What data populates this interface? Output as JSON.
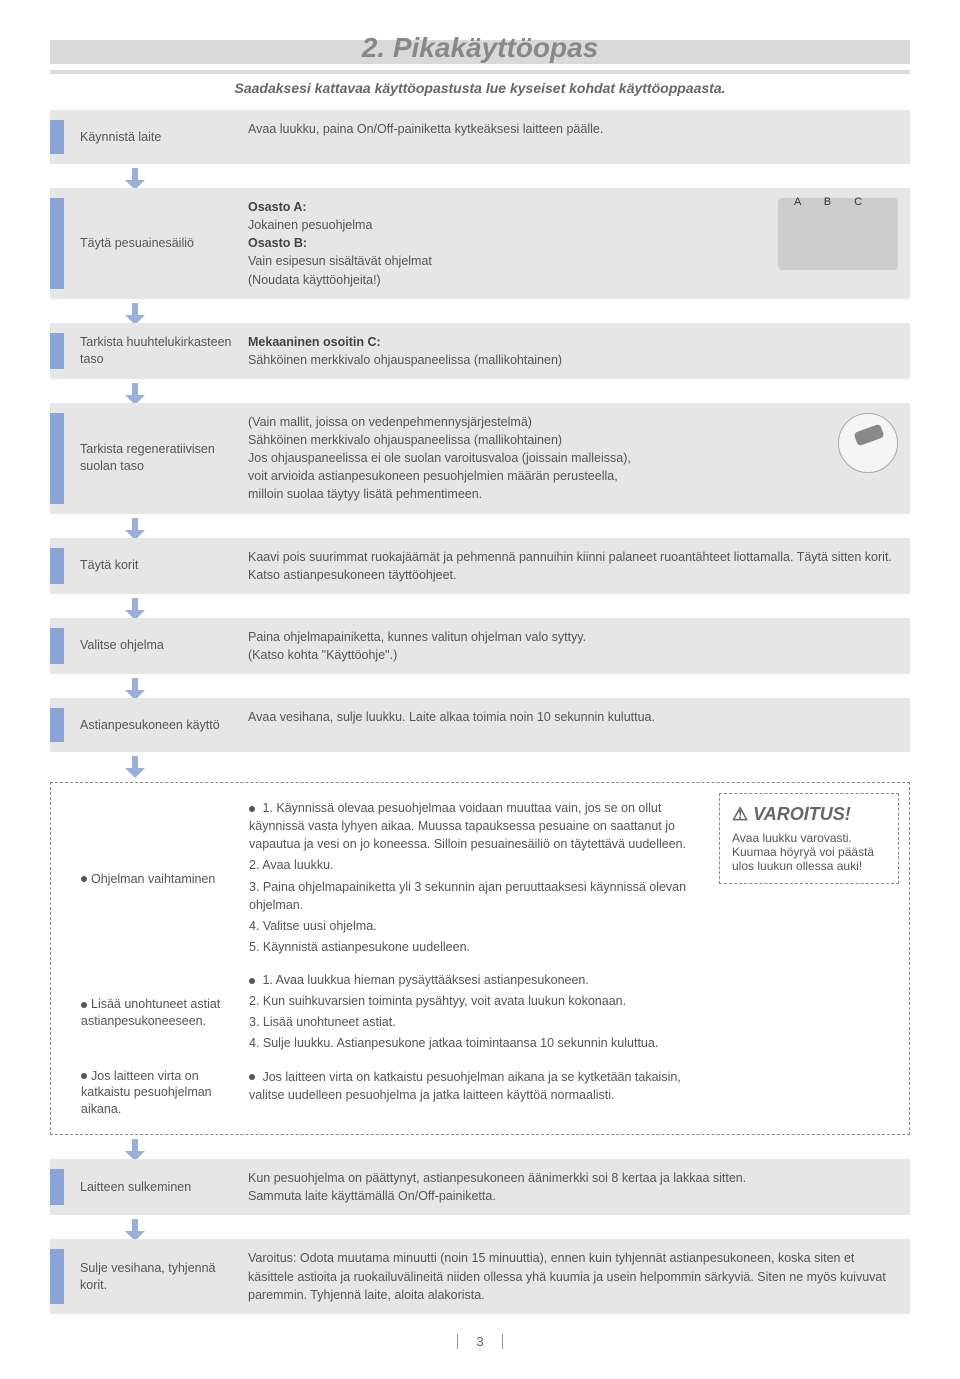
{
  "title": "2. Pikakäyttöopas",
  "subtitle": "Saadaksesi kattavaa käyttöopastusta lue kyseiset kohdat käyttöoppaasta.",
  "colors": {
    "band": "#d9d9d9",
    "tab": "#8aa4d6",
    "step_bg": "#e6e6e6",
    "text": "#555",
    "title": "#888"
  },
  "page_number": "3",
  "steps": [
    {
      "label": "Käynnistä laite",
      "body_html": "Avaa luukku, paina On/Off-painiketta kytkeäksesi laitteen päälle."
    },
    {
      "label": "Täytä pesuainesäiliö",
      "body_html": "<b>Osasto A:</b><br>Jokainen pesuohjelma<br><b>Osasto B:</b><br>Vain esipesun sisältävät ohjelmat<br>(Noudata käyttöohjeita!)",
      "image": "dispenser",
      "abc": "A  B  C"
    },
    {
      "label": "Tarkista huuhtelukirkasteen taso",
      "body_html": "<b>Mekaaninen osoitin C:</b><br>Sähköinen merkkivalo ohjauspaneelissa (mallikohtainen)"
    },
    {
      "label": "Tarkista regeneratiivisen suolan taso",
      "body_html": "(Vain mallit, joissa on vedenpehmennysjärjestelmä)<br>Sähköinen merkkivalo ohjauspaneelissa (mallikohtainen)<br>Jos ohjauspaneelissa ei ole suolan varoitusvaloa (joissain malleissa),<br>voit arvioida astianpesukoneen pesuohjelmien määrän perusteella,<br>milloin suolaa täytyy lisätä pehmentimeen.",
      "image": "salt"
    },
    {
      "label": "Täytä korit",
      "body_html": "Kaavi pois suurimmat ruokajäämät ja pehmennä pannuihin kiinni palaneet ruoantähteet liottamalla. Täytä sitten korit. Katso astianpesukoneen täyttöohjeet."
    },
    {
      "label": "Valitse ohjelma",
      "body_html": "Paina ohjelmapainiketta, kunnes valitun ohjelman valo syttyy.<br>(Katso kohta \"Käyttöohje\".)"
    },
    {
      "label": "Astianpesukoneen käyttö",
      "body_html": "Avaa vesihana, sulje luukku. Laite alkaa toimia noin 10 sekunnin kuluttua."
    }
  ],
  "tips": {
    "items": [
      {
        "label": "Ohjelman vaihtaminen",
        "lines": [
          "1. Käynnissä olevaa pesuohjelmaa voidaan muuttaa vain, jos se on ollut käynnissä vasta lyhyen aikaa. Muussa tapauksessa pesuaine on saattanut jo vapautua ja vesi on jo koneessa. Silloin pesuainesäiliö on täytettävä uudelleen.",
          "2. Avaa luukku.",
          "3. Paina ohjelmapainiketta yli 3 sekunnin ajan peruuttaaksesi käynnissä olevan ohjelman.",
          "4. Valitse uusi ohjelma.",
          "5. Käynnistä astianpesukone uudelleen."
        ]
      },
      {
        "label": "Lisää unohtuneet astiat astianpesukoneeseen.",
        "lines": [
          "1. Avaa luukkua hieman pysäyttääksesi astianpesukoneen.",
          "2. Kun suihkuvarsien toiminta pysähtyy, voit avata luukun kokonaan.",
          "3. Lisää unohtuneet astiat.",
          "4. Sulje luukku. Astianpesukone jatkaa toimintaansa 10 sekunnin kuluttua."
        ]
      },
      {
        "label": "Jos laitteen virta on katkaistu pesuohjelman aikana.",
        "lines": [
          "Jos laitteen virta on katkaistu pesuohjelman aikana ja se kytketään takaisin, valitse uudelleen pesuohjelma ja jatka laitteen käyttöä normaalisti."
        ]
      }
    ],
    "warning": {
      "title": "VAROITUS!",
      "body": "Avaa luukku varovasti. Kuumaa höyryä voi päästä ulos luukun ollessa auki!"
    }
  },
  "final_steps": [
    {
      "label": "Laitteen sulkeminen",
      "body_html": "Kun pesuohjelma on päättynyt, astianpesukoneen äänimerkki soi 8 kertaa ja lakkaa sitten.<br>Sammuta laite käyttämällä On/Off-painiketta."
    },
    {
      "label": "Sulje vesihana, tyhjennä korit.",
      "body_html": "Varoitus: Odota muutama minuutti (noin 15 minuuttia), ennen kuin tyhjennät astianpesukoneen, koska siten et käsittele astioita ja ruokailuvälineitä niiden ollessa yhä kuumia ja usein helpommin särkyviä. Siten ne myös kuivuvat paremmin. Tyhjennä laite, aloita alakorista."
    }
  ]
}
